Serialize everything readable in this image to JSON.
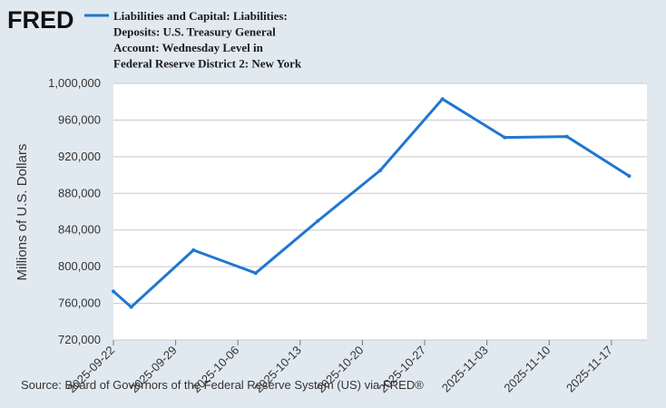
{
  "brand": {
    "logo_text": "FRED"
  },
  "chart_data": {
    "type": "line",
    "title": "Liabilities and Capital: Liabilities: Deposits: U.S. Treasury General Account: Wednesday Level in Federal Reserve District 2: New York",
    "legend_lines": [
      "Liabilities and Capital: Liabilities:",
      "Deposits: U.S. Treasury General",
      "Account: Wednesday Level in",
      "Federal Reserve District 2: New York"
    ],
    "legend_placement": "top-left",
    "xlabel": "",
    "ylabel": "Millions of U.S. Dollars",
    "x_ticks": [
      "2025-09-22",
      "2025-09-29",
      "2025-10-06",
      "2025-10-13",
      "2025-10-20",
      "2025-10-27",
      "2025-11-03",
      "2025-11-10",
      "2025-11-17"
    ],
    "y_ticks": [
      "720,000",
      "760,000",
      "800,000",
      "840,000",
      "880,000",
      "920,000",
      "960,000",
      "1,000,000"
    ],
    "ylim": [
      720000,
      1000000
    ],
    "grid": true,
    "series": [
      {
        "name": "Liabilities and Capital: Liabilities: Deposits: U.S. Treasury General Account: Wednesday Level in Federal Reserve District 2: New York",
        "color": "#1f77d0",
        "x": [
          "2025-09-22",
          "2025-09-24",
          "2025-10-01",
          "2025-10-08",
          "2025-10-15",
          "2025-10-22",
          "2025-10-29",
          "2025-11-05",
          "2025-11-12",
          "2025-11-19"
        ],
        "values": [
          773000,
          756000,
          818000,
          793000,
          850000,
          905000,
          983000,
          941000,
          942000,
          899000
        ]
      }
    ]
  },
  "footer": {
    "source": "Source: Board of Governors of the Federal Reserve System (US) via FRED®"
  }
}
